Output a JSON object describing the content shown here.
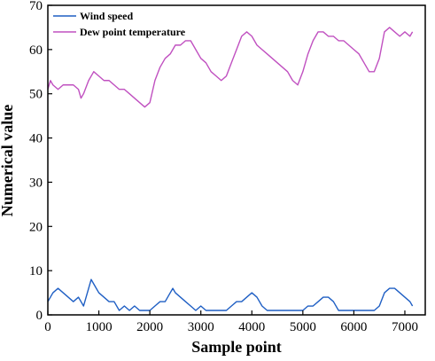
{
  "chart_data": {
    "type": "line",
    "xlabel": "Sample point",
    "ylabel": "Numerical value",
    "xlim": [
      0,
      7400
    ],
    "ylim": [
      0,
      70
    ],
    "xticks": [
      0,
      1000,
      2000,
      3000,
      4000,
      5000,
      6000,
      7000
    ],
    "yticks": [
      0,
      10,
      20,
      30,
      40,
      50,
      60,
      70
    ],
    "grid": false,
    "legend_position": "top-left",
    "series": [
      {
        "name": "Wind speed",
        "color": "#1f5fc4",
        "x": [
          0,
          100,
          200,
          300,
          400,
          500,
          600,
          700,
          800,
          850,
          900,
          950,
          1000,
          1100,
          1200,
          1300,
          1400,
          1500,
          1600,
          1700,
          1800,
          1900,
          2000,
          2100,
          2200,
          2300,
          2400,
          2450,
          2500,
          2600,
          2700,
          2800,
          2900,
          3000,
          3100,
          3200,
          3300,
          3400,
          3500,
          3600,
          3700,
          3800,
          3900,
          4000,
          4100,
          4200,
          4300,
          4400,
          4500,
          4600,
          4700,
          4800,
          4900,
          5000,
          5100,
          5200,
          5300,
          5400,
          5500,
          5600,
          5700,
          5800,
          5900,
          6000,
          6100,
          6200,
          6300,
          6400,
          6500,
          6600,
          6700,
          6800,
          6900,
          7000,
          7100,
          7150
        ],
        "values": [
          3,
          5,
          6,
          5,
          4,
          3,
          4,
          2,
          6,
          8,
          7,
          6,
          5,
          4,
          3,
          3,
          1,
          2,
          1,
          2,
          1,
          1,
          1,
          2,
          3,
          3,
          5,
          6,
          5,
          4,
          3,
          2,
          1,
          2,
          1,
          1,
          1,
          1,
          1,
          2,
          3,
          3,
          4,
          5,
          4,
          2,
          1,
          1,
          1,
          1,
          1,
          1,
          1,
          1,
          2,
          2,
          3,
          4,
          4,
          3,
          1,
          1,
          1,
          1,
          1,
          1,
          1,
          1,
          2,
          5,
          6,
          6,
          5,
          4,
          3,
          2
        ]
      },
      {
        "name": "Dew point temperature",
        "color": "#c050c0",
        "x": [
          0,
          50,
          100,
          200,
          300,
          400,
          500,
          600,
          650,
          700,
          800,
          900,
          1000,
          1100,
          1200,
          1300,
          1400,
          1500,
          1600,
          1700,
          1800,
          1900,
          2000,
          2100,
          2200,
          2300,
          2400,
          2500,
          2600,
          2700,
          2800,
          2900,
          3000,
          3100,
          3200,
          3300,
          3400,
          3500,
          3600,
          3700,
          3800,
          3900,
          4000,
          4100,
          4200,
          4300,
          4400,
          4500,
          4600,
          4700,
          4800,
          4900,
          5000,
          5100,
          5200,
          5300,
          5400,
          5500,
          5600,
          5700,
          5800,
          5900,
          6000,
          6100,
          6200,
          6300,
          6400,
          6500,
          6600,
          6700,
          6800,
          6900,
          7000,
          7100,
          7150
        ],
        "values": [
          51,
          53,
          52,
          51,
          52,
          52,
          52,
          51,
          49,
          50,
          53,
          55,
          54,
          53,
          53,
          52,
          51,
          51,
          50,
          49,
          48,
          47,
          48,
          53,
          56,
          58,
          59,
          61,
          61,
          62,
          62,
          60,
          58,
          57,
          55,
          54,
          53,
          54,
          57,
          60,
          63,
          64,
          63,
          61,
          60,
          59,
          58,
          57,
          56,
          55,
          53,
          52,
          55,
          59,
          62,
          64,
          64,
          63,
          63,
          62,
          62,
          61,
          60,
          59,
          57,
          55,
          55,
          58,
          64,
          65,
          64,
          63,
          64,
          63,
          64
        ]
      }
    ]
  }
}
